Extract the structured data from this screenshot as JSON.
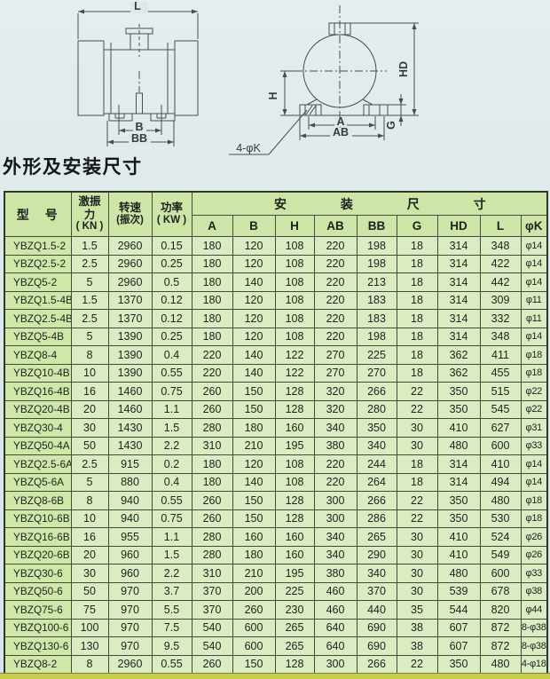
{
  "title": "外形及安装尺寸",
  "diagram": {
    "side_view": {
      "length": "L",
      "bolt_span": "B",
      "base_width": "BB"
    },
    "end_view": {
      "height_center": "H",
      "height_total": "HD",
      "bolt_span": "A",
      "base_width": "AB",
      "foot_thickness": "G",
      "holes": "4-φK"
    }
  },
  "table": {
    "header": {
      "model": "型　号",
      "force": [
        "激振",
        "力",
        "( KN )"
      ],
      "speed": [
        "转速",
        "(振次)"
      ],
      "power": [
        "功率",
        "( KW )"
      ],
      "install_title": [
        "安",
        "装",
        "尺",
        "寸"
      ],
      "columns": [
        "A",
        "B",
        "H",
        "AB",
        "BB",
        "G",
        "HD",
        "L",
        "φK"
      ]
    },
    "rows": [
      [
        "YBZQ1.5-2",
        "1.5",
        "2960",
        "0.15",
        "180",
        "120",
        "108",
        "220",
        "198",
        "18",
        "314",
        "348",
        "φ14"
      ],
      [
        "YBZQ2.5-2",
        "2.5",
        "2960",
        "0.25",
        "180",
        "120",
        "108",
        "220",
        "198",
        "18",
        "314",
        "422",
        "φ14"
      ],
      [
        "YBZQ5-2",
        "5",
        "2960",
        "0.5",
        "180",
        "140",
        "108",
        "220",
        "213",
        "18",
        "314",
        "442",
        "φ14"
      ],
      [
        "YBZQ1.5-4B",
        "1.5",
        "1370",
        "0.12",
        "180",
        "120",
        "108",
        "220",
        "183",
        "18",
        "314",
        "309",
        "φ11"
      ],
      [
        "YBZQ2.5-4B",
        "2.5",
        "1370",
        "0.12",
        "180",
        "120",
        "108",
        "220",
        "183",
        "18",
        "314",
        "332",
        "φ11"
      ],
      [
        "YBZQ5-4B",
        "5",
        "1390",
        "0.25",
        "180",
        "120",
        "108",
        "220",
        "198",
        "18",
        "314",
        "348",
        "φ14"
      ],
      [
        "YBZQ8-4",
        "8",
        "1390",
        "0.4",
        "220",
        "140",
        "122",
        "270",
        "225",
        "18",
        "362",
        "411",
        "φ18"
      ],
      [
        "YBZQ10-4B",
        "10",
        "1390",
        "0.55",
        "220",
        "140",
        "122",
        "270",
        "270",
        "18",
        "362",
        "455",
        "φ18"
      ],
      [
        "YBZQ16-4B",
        "16",
        "1460",
        "0.75",
        "260",
        "150",
        "128",
        "320",
        "266",
        "22",
        "350",
        "515",
        "φ22"
      ],
      [
        "YBZQ20-4B",
        "20",
        "1460",
        "1.1",
        "260",
        "150",
        "128",
        "320",
        "280",
        "22",
        "350",
        "545",
        "φ22"
      ],
      [
        "YBZQ30-4",
        "30",
        "1430",
        "1.5",
        "280",
        "180",
        "160",
        "340",
        "350",
        "30",
        "410",
        "627",
        "φ31"
      ],
      [
        "YBZQ50-4A",
        "50",
        "1430",
        "2.2",
        "310",
        "210",
        "195",
        "380",
        "340",
        "30",
        "480",
        "600",
        "φ33"
      ],
      [
        "YBZQ2.5-6A",
        "2.5",
        "915",
        "0.2",
        "180",
        "120",
        "108",
        "220",
        "244",
        "18",
        "314",
        "410",
        "φ14"
      ],
      [
        "YBZQ5-6A",
        "5",
        "880",
        "0.4",
        "180",
        "140",
        "108",
        "220",
        "264",
        "18",
        "314",
        "494",
        "φ14"
      ],
      [
        "YBZQ8-6B",
        "8",
        "940",
        "0.55",
        "260",
        "150",
        "128",
        "300",
        "266",
        "22",
        "350",
        "480",
        "φ18"
      ],
      [
        "YBZQ10-6B",
        "10",
        "940",
        "0.75",
        "260",
        "150",
        "128",
        "300",
        "286",
        "22",
        "350",
        "530",
        "φ18"
      ],
      [
        "YBZQ16-6B",
        "16",
        "955",
        "1.1",
        "280",
        "160",
        "160",
        "340",
        "265",
        "30",
        "410",
        "524",
        "φ26"
      ],
      [
        "YBZQ20-6B",
        "20",
        "960",
        "1.5",
        "280",
        "180",
        "160",
        "340",
        "290",
        "30",
        "410",
        "549",
        "φ26"
      ],
      [
        "YBZQ30-6",
        "30",
        "960",
        "2.2",
        "310",
        "210",
        "195",
        "380",
        "340",
        "30",
        "480",
        "600",
        "φ33"
      ],
      [
        "YBZQ50-6",
        "50",
        "970",
        "3.7",
        "370",
        "200",
        "225",
        "460",
        "370",
        "30",
        "539",
        "678",
        "φ38"
      ],
      [
        "YBZQ75-6",
        "75",
        "970",
        "5.5",
        "370",
        "260",
        "230",
        "460",
        "440",
        "35",
        "544",
        "820",
        "φ44"
      ],
      [
        "YBZQ100-6",
        "100",
        "970",
        "7.5",
        "540",
        "600",
        "265",
        "640",
        "690",
        "38",
        "607",
        "872",
        "8-φ38"
      ],
      [
        "YBZQ130-6",
        "130",
        "970",
        "9.5",
        "540",
        "600",
        "265",
        "640",
        "690",
        "38",
        "607",
        "872",
        "8-φ38"
      ],
      [
        "YBZQ8-2",
        "8",
        "2960",
        "0.55",
        "260",
        "150",
        "128",
        "300",
        "266",
        "22",
        "350",
        "480",
        "4-φ18"
      ]
    ]
  },
  "colors": {
    "header_green": "#cde5a7",
    "cell_green": "#dbecc3",
    "model_green": "#d0e7aa",
    "page_bg": "#dde8e9",
    "bottom_strip": "#c6cc50"
  }
}
